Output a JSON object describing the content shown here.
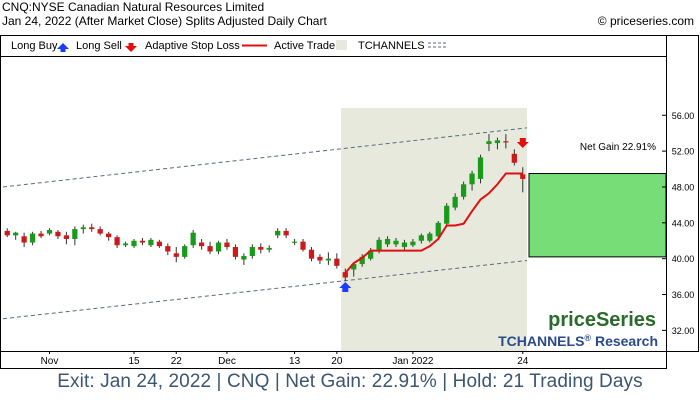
{
  "header": {
    "title": "CNQ:NYSE Canadian Natural Resources Limited",
    "subtitle": "Jan 24, 2022 (After Market Close)  Splits Adjusted Daily Chart",
    "copyright": "© priceseries.com"
  },
  "legend": {
    "long_buy": "Long Buy",
    "long_sell": "Long Sell",
    "stop": "Adaptive Stop Loss",
    "active": "Active Trade",
    "channels": "TCHANNELS"
  },
  "net_gain_label": "Net Gain 22.91%",
  "watermark": {
    "brand": "priceSeries",
    "product": "TCHANNELS",
    "reg": "®",
    "research": " Research"
  },
  "footer": "Exit: Jan 24, 2022 | CNQ | Net Gain: 22.91% | Hold: 21 Trading Days",
  "colors": {
    "up": "#1a9a1a",
    "down": "#cc1a1a",
    "stop": "#e01010",
    "active_bg": "#e6e9dc",
    "gain_box": "#77dd77",
    "channel": "#5a6a80",
    "buy_arrow": "#1a3cff",
    "sell_arrow": "#e01010",
    "footer_text": "#3b5672"
  },
  "chart_data": {
    "type": "candlestick",
    "y_ticks": [
      "56.00",
      "52.00",
      "48.00",
      "44.00",
      "40.00",
      "36.00",
      "32.00"
    ],
    "y_tick_values": [
      56,
      52,
      48,
      44,
      40,
      36,
      32
    ],
    "ylim": [
      29.7,
      62.5
    ],
    "x_labels": [
      {
        "label": "Nov",
        "bar": 5
      },
      {
        "label": "15",
        "bar": 15
      },
      {
        "label": "22",
        "bar": 20
      },
      {
        "label": "Dec",
        "bar": 26
      },
      {
        "label": "13",
        "bar": 34
      },
      {
        "label": "20",
        "bar": 39
      },
      {
        "label": "Jan 2022",
        "bar": 48
      },
      {
        "label": "24",
        "bar": 61
      }
    ],
    "candles": [
      {
        "o": 43.1,
        "h": 43.4,
        "l": 42.4,
        "c": 42.6
      },
      {
        "o": 42.6,
        "h": 43.0,
        "l": 42.1,
        "c": 42.9
      },
      {
        "o": 42.5,
        "h": 42.9,
        "l": 41.3,
        "c": 41.8
      },
      {
        "o": 41.8,
        "h": 43.0,
        "l": 41.5,
        "c": 42.8
      },
      {
        "o": 42.8,
        "h": 43.1,
        "l": 42.3,
        "c": 42.5
      },
      {
        "o": 42.8,
        "h": 43.4,
        "l": 42.6,
        "c": 43.2
      },
      {
        "o": 43.0,
        "h": 43.2,
        "l": 42.2,
        "c": 42.5
      },
      {
        "o": 42.6,
        "h": 43.0,
        "l": 41.6,
        "c": 42.2
      },
      {
        "o": 42.2,
        "h": 43.6,
        "l": 41.5,
        "c": 43.3
      },
      {
        "o": 43.3,
        "h": 43.8,
        "l": 42.8,
        "c": 43.5
      },
      {
        "o": 43.5,
        "h": 43.9,
        "l": 43.0,
        "c": 43.3
      },
      {
        "o": 43.3,
        "h": 43.6,
        "l": 42.6,
        "c": 42.8
      },
      {
        "o": 42.8,
        "h": 43.0,
        "l": 42.0,
        "c": 42.4
      },
      {
        "o": 42.4,
        "h": 42.6,
        "l": 41.2,
        "c": 41.5
      },
      {
        "o": 41.5,
        "h": 41.9,
        "l": 41.3,
        "c": 41.7
      },
      {
        "o": 41.4,
        "h": 42.2,
        "l": 41.2,
        "c": 42.0
      },
      {
        "o": 42.0,
        "h": 42.3,
        "l": 41.5,
        "c": 41.8
      },
      {
        "o": 41.5,
        "h": 42.3,
        "l": 41.3,
        "c": 42.1
      },
      {
        "o": 41.9,
        "h": 42.1,
        "l": 41.2,
        "c": 41.4
      },
      {
        "o": 41.4,
        "h": 41.7,
        "l": 40.4,
        "c": 40.8
      },
      {
        "o": 40.6,
        "h": 41.3,
        "l": 39.6,
        "c": 40.2
      },
      {
        "o": 40.2,
        "h": 41.6,
        "l": 40.0,
        "c": 41.4
      },
      {
        "o": 41.5,
        "h": 43.2,
        "l": 41.2,
        "c": 42.9
      },
      {
        "o": 41.8,
        "h": 42.2,
        "l": 41.0,
        "c": 41.4
      },
      {
        "o": 41.4,
        "h": 41.9,
        "l": 40.5,
        "c": 40.8
      },
      {
        "o": 40.8,
        "h": 42.0,
        "l": 40.5,
        "c": 41.8
      },
      {
        "o": 41.8,
        "h": 42.2,
        "l": 41.0,
        "c": 41.3
      },
      {
        "o": 41.3,
        "h": 41.6,
        "l": 39.9,
        "c": 40.2
      },
      {
        "o": 39.9,
        "h": 40.6,
        "l": 39.3,
        "c": 40.3
      },
      {
        "o": 40.3,
        "h": 41.6,
        "l": 40.0,
        "c": 41.3
      },
      {
        "o": 41.3,
        "h": 41.7,
        "l": 40.6,
        "c": 41.0
      },
      {
        "o": 41.0,
        "h": 41.5,
        "l": 40.7,
        "c": 41.2
      },
      {
        "o": 42.6,
        "h": 43.4,
        "l": 42.3,
        "c": 43.1
      },
      {
        "o": 43.1,
        "h": 43.4,
        "l": 42.3,
        "c": 42.6
      },
      {
        "o": 41.8,
        "h": 42.2,
        "l": 41.5,
        "c": 41.9
      },
      {
        "o": 41.9,
        "h": 42.2,
        "l": 40.8,
        "c": 41.0
      },
      {
        "o": 41.0,
        "h": 41.3,
        "l": 39.7,
        "c": 40.0
      },
      {
        "o": 40.2,
        "h": 40.5,
        "l": 39.4,
        "c": 39.8
      },
      {
        "o": 39.8,
        "h": 40.7,
        "l": 39.3,
        "c": 40.0
      },
      {
        "o": 40.0,
        "h": 40.6,
        "l": 38.9,
        "c": 39.2
      },
      {
        "o": 38.5,
        "h": 38.9,
        "l": 37.5,
        "c": 37.9
      },
      {
        "o": 38.8,
        "h": 39.5,
        "l": 38.0,
        "c": 39.4
      },
      {
        "o": 39.4,
        "h": 40.5,
        "l": 39.1,
        "c": 40.2
      },
      {
        "o": 40.0,
        "h": 41.2,
        "l": 39.8,
        "c": 40.9
      },
      {
        "o": 41.0,
        "h": 42.4,
        "l": 40.6,
        "c": 42.1
      },
      {
        "o": 41.6,
        "h": 42.5,
        "l": 41.3,
        "c": 42.2
      },
      {
        "o": 41.6,
        "h": 42.3,
        "l": 41.3,
        "c": 42.0
      },
      {
        "o": 41.3,
        "h": 42.1,
        "l": 40.9,
        "c": 41.8
      },
      {
        "o": 41.5,
        "h": 42.2,
        "l": 41.3,
        "c": 41.9
      },
      {
        "o": 42.0,
        "h": 42.8,
        "l": 41.7,
        "c": 42.6
      },
      {
        "o": 42.0,
        "h": 43.0,
        "l": 41.8,
        "c": 42.8
      },
      {
        "o": 42.5,
        "h": 44.2,
        "l": 42.3,
        "c": 44.0
      },
      {
        "o": 43.9,
        "h": 46.2,
        "l": 43.6,
        "c": 45.9
      },
      {
        "o": 45.7,
        "h": 47.3,
        "l": 45.4,
        "c": 46.9
      },
      {
        "o": 46.9,
        "h": 48.6,
        "l": 46.6,
        "c": 48.3
      },
      {
        "o": 48.3,
        "h": 49.8,
        "l": 47.6,
        "c": 49.5
      },
      {
        "o": 48.9,
        "h": 51.6,
        "l": 48.4,
        "c": 51.3
      },
      {
        "o": 52.8,
        "h": 53.9,
        "l": 52.0,
        "c": 53.1
      },
      {
        "o": 52.9,
        "h": 53.5,
        "l": 52.2,
        "c": 53.2
      },
      {
        "o": 53.1,
        "h": 53.9,
        "l": 52.3,
        "c": 53.0
      },
      {
        "o": 51.7,
        "h": 52.2,
        "l": 50.4,
        "c": 50.7
      },
      {
        "o": 49.4,
        "h": 50.2,
        "l": 47.4,
        "c": 48.9
      }
    ],
    "stop_line": [
      {
        "bar": 40,
        "v": 38.4
      },
      {
        "bar": 41,
        "v": 39.5
      },
      {
        "bar": 42,
        "v": 40.1
      },
      {
        "bar": 43,
        "v": 40.9
      },
      {
        "bar": 44,
        "v": 40.9
      },
      {
        "bar": 45,
        "v": 40.9
      },
      {
        "bar": 46,
        "v": 40.9
      },
      {
        "bar": 47,
        "v": 40.9
      },
      {
        "bar": 48,
        "v": 40.9
      },
      {
        "bar": 49,
        "v": 40.9
      },
      {
        "bar": 50,
        "v": 41.4
      },
      {
        "bar": 51,
        "v": 42.2
      },
      {
        "bar": 52,
        "v": 43.7
      },
      {
        "bar": 53,
        "v": 43.7
      },
      {
        "bar": 54,
        "v": 43.9
      },
      {
        "bar": 55,
        "v": 45.3
      },
      {
        "bar": 56,
        "v": 46.6
      },
      {
        "bar": 57,
        "v": 47.3
      },
      {
        "bar": 58,
        "v": 48.3
      },
      {
        "bar": 59,
        "v": 49.5
      },
      {
        "bar": 60,
        "v": 49.5
      },
      {
        "bar": 61,
        "v": 49.5
      }
    ],
    "channel_upper": [
      {
        "bar": -0.5,
        "v": 48.0
      },
      {
        "bar": 61.5,
        "v": 54.6
      }
    ],
    "channel_lower": [
      {
        "bar": -0.5,
        "v": 33.3
      },
      {
        "bar": 61.5,
        "v": 39.8
      }
    ],
    "active_trade": {
      "start_bar": 40,
      "end_bar": 61,
      "top": 56.8
    },
    "gain_box": {
      "from": 40.2,
      "to": 49.5
    },
    "buy_bar": 40,
    "buy_value": 37.4,
    "sell_bar": 61,
    "sell_value": 52.8
  }
}
